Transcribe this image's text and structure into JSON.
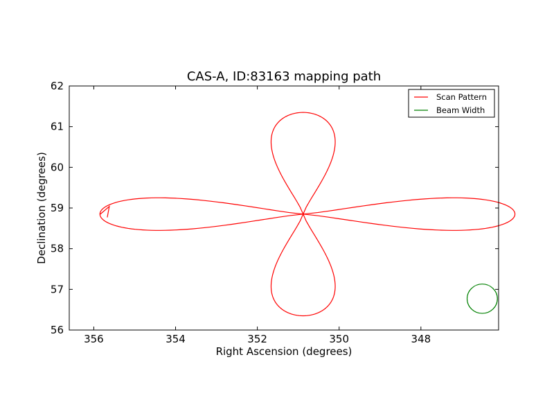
{
  "chart_data": {
    "type": "line",
    "title": "CAS-A, ID:83163 mapping path",
    "xlabel": "Right Ascension (degrees)",
    "ylabel": "Declination (degrees)",
    "xlim": [
      356.6,
      346.1
    ],
    "ylim": [
      56,
      62
    ],
    "x_ticks": [
      "356",
      "354",
      "352",
      "350",
      "348"
    ],
    "y_ticks": [
      "56",
      "57",
      "58",
      "59",
      "60",
      "61",
      "62"
    ],
    "x_reversed": true,
    "grid": false,
    "legend_position": "top-right",
    "legend": [
      "Scan Pattern",
      "Beam Width"
    ],
    "colors": {
      "scan": "#ff0000",
      "beam": "#008000"
    },
    "series": [
      {
        "name": "Scan Pattern",
        "center": [
          350.88,
          58.85
        ],
        "loops": [
          {
            "direction": "east",
            "extent_ra": 5.18,
            "half_width_dec": 0.68
          },
          {
            "direction": "west",
            "extent_ra": 4.97,
            "half_width_dec": 0.68
          },
          {
            "direction": "north",
            "extent_dec": 2.5,
            "half_width_ra": 1.33
          },
          {
            "direction": "south",
            "extent_dec": 2.5,
            "half_width_ra": 1.33
          }
        ],
        "tail": [
          [
            355.85,
            58.84
          ],
          [
            355.62,
            59.04
          ],
          [
            355.67,
            58.77
          ]
        ]
      },
      {
        "name": "Beam Width",
        "center": [
          346.5,
          56.77
        ],
        "radius_ra": 0.37,
        "radius_dec": 0.36
      }
    ]
  }
}
